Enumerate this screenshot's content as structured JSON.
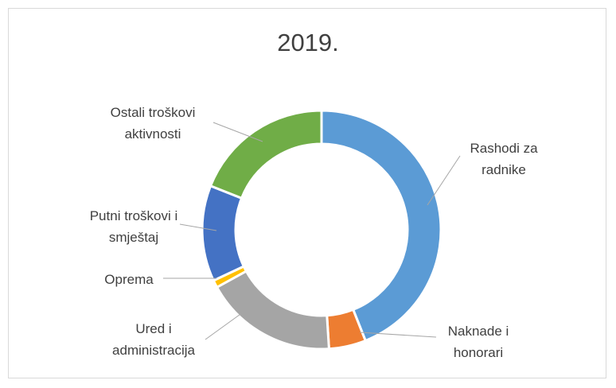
{
  "chart_data": {
    "type": "donut",
    "title": "2019.",
    "categories": [
      "Rashodi za radnike",
      "Naknade i honorari",
      "Ured i administracija",
      "Oprema",
      "Putni troškovi i smještaj",
      "Ostali troškovi aktivnosti"
    ],
    "values": [
      44,
      5,
      18,
      1,
      13,
      19
    ],
    "colors": [
      "#5b9bd5",
      "#ed7d31",
      "#a5a5a5",
      "#ffc000",
      "#4472c4",
      "#70ad47"
    ]
  }
}
